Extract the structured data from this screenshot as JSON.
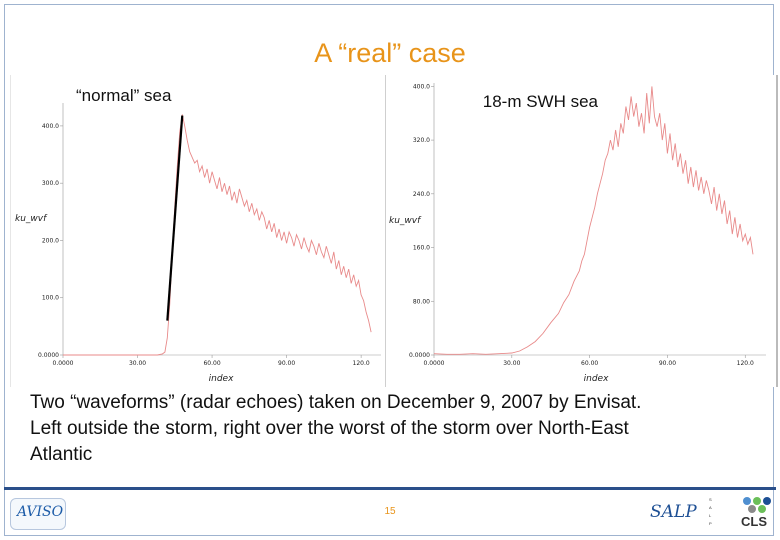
{
  "slide": {
    "title": "A “real” case",
    "caption_lines": [
      "Two “waveforms” (radar echoes) taken on December 9, 2007 by Envisat.",
      "Left outside the storm, right over the worst of the storm over North-East",
      "Atlantic"
    ],
    "page_number": "15",
    "colors": {
      "title": "#e8941a",
      "waveform": "#e88a8a",
      "leading_edge": "#000000",
      "footer_rule": "#2a4f8a"
    }
  },
  "logos": {
    "aviso": "AVISO",
    "salp": "SALP",
    "salp_sub": [
      "S",
      "A",
      "L",
      "P"
    ],
    "cls": "CLS"
  },
  "chart_data": [
    {
      "type": "line",
      "title": "“normal” sea",
      "xlabel": "index",
      "ylabel": "ku_wvf",
      "xlim": [
        0,
        128
      ],
      "ylim": [
        0,
        440
      ],
      "x_ticks": [
        "0.0000",
        "30.00",
        "60.00",
        "90.00",
        "120.0"
      ],
      "x_tick_values": [
        0,
        30,
        60,
        90,
        120
      ],
      "y_ticks": [
        "0.0000",
        "100.0",
        "200.0",
        "300.0",
        "400.0"
      ],
      "y_tick_values": [
        0,
        100,
        200,
        300,
        400
      ],
      "series": [
        {
          "points": [
            [
              0,
              0
            ],
            [
              10,
              0
            ],
            [
              20,
              0
            ],
            [
              30,
              0
            ],
            [
              38,
              0
            ],
            [
              40,
              2
            ],
            [
              41,
              5
            ],
            [
              42,
              30
            ],
            [
              43,
              90
            ],
            [
              44,
              180
            ],
            [
              45,
              260
            ],
            [
              46,
              330
            ],
            [
              47,
              390
            ],
            [
              48,
              420
            ],
            [
              49,
              400
            ],
            [
              50,
              375
            ],
            [
              51,
              355
            ],
            [
              52,
              345
            ],
            [
              53,
              335
            ],
            [
              54,
              340
            ],
            [
              55,
              320
            ],
            [
              56,
              330
            ],
            [
              57,
              310
            ],
            [
              58,
              325
            ],
            [
              59,
              300
            ],
            [
              60,
              320
            ],
            [
              61,
              305
            ],
            [
              62,
              290
            ],
            [
              63,
              310
            ],
            [
              64,
              285
            ],
            [
              65,
              300
            ],
            [
              66,
              280
            ],
            [
              67,
              295
            ],
            [
              68,
              270
            ],
            [
              69,
              285
            ],
            [
              70,
              265
            ],
            [
              71,
              290
            ],
            [
              72,
              275
            ],
            [
              73,
              260
            ],
            [
              74,
              270
            ],
            [
              75,
              250
            ],
            [
              76,
              265
            ],
            [
              77,
              245
            ],
            [
              78,
              255
            ],
            [
              79,
              235
            ],
            [
              80,
              250
            ],
            [
              81,
              240
            ],
            [
              82,
              220
            ],
            [
              83,
              235
            ],
            [
              84,
              215
            ],
            [
              85,
              230
            ],
            [
              86,
              205
            ],
            [
              87,
              220
            ],
            [
              88,
              200
            ],
            [
              89,
              215
            ],
            [
              90,
              195
            ],
            [
              91,
              215
            ],
            [
              92,
              205
            ],
            [
              93,
              190
            ],
            [
              94,
              210
            ],
            [
              95,
              200
            ],
            [
              96,
              185
            ],
            [
              97,
              205
            ],
            [
              98,
              190
            ],
            [
              99,
              180
            ],
            [
              100,
              200
            ],
            [
              101,
              190
            ],
            [
              102,
              175
            ],
            [
              103,
              195
            ],
            [
              104,
              180
            ],
            [
              105,
              170
            ],
            [
              106,
              190
            ],
            [
              107,
              175
            ],
            [
              108,
              160
            ],
            [
              109,
              180
            ],
            [
              110,
              150
            ],
            [
              111,
              165
            ],
            [
              112,
              140
            ],
            [
              113,
              155
            ],
            [
              114,
              135
            ],
            [
              115,
              150
            ],
            [
              116,
              125
            ],
            [
              117,
              140
            ],
            [
              118,
              120
            ],
            [
              119,
              130
            ],
            [
              120,
              105
            ],
            [
              121,
              95
            ],
            [
              122,
              75
            ],
            [
              123,
              60
            ],
            [
              124,
              40
            ]
          ]
        }
      ],
      "annotation_line": {
        "from": [
          48,
          418
        ],
        "to": [
          42,
          60
        ]
      }
    },
    {
      "type": "line",
      "title": "18-m SWH sea",
      "xlabel": "index",
      "ylabel": "ku_wvf",
      "xlim": [
        0,
        128
      ],
      "ylim": [
        0,
        405
      ],
      "x_ticks": [
        "0.0000",
        "30.00",
        "60.00",
        "90.00",
        "120.0"
      ],
      "x_tick_values": [
        0,
        30,
        60,
        90,
        120
      ],
      "y_ticks": [
        "0.0000",
        "80.00",
        "160.0",
        "240.0",
        "320.0",
        "400.0"
      ],
      "y_tick_values": [
        0,
        80,
        160,
        240,
        320,
        400
      ],
      "series": [
        {
          "points": [
            [
              0,
              2
            ],
            [
              5,
              1
            ],
            [
              10,
              1
            ],
            [
              15,
              2
            ],
            [
              20,
              1
            ],
            [
              25,
              2
            ],
            [
              30,
              3
            ],
            [
              33,
              6
            ],
            [
              36,
              12
            ],
            [
              39,
              20
            ],
            [
              42,
              32
            ],
            [
              45,
              48
            ],
            [
              48,
              62
            ],
            [
              50,
              78
            ],
            [
              52,
              90
            ],
            [
              54,
              110
            ],
            [
              56,
              125
            ],
            [
              57,
              140
            ],
            [
              58,
              150
            ],
            [
              59,
              170
            ],
            [
              60,
              190
            ],
            [
              61,
              205
            ],
            [
              62,
              220
            ],
            [
              63,
              240
            ],
            [
              64,
              255
            ],
            [
              65,
              270
            ],
            [
              66,
              290
            ],
            [
              67,
              300
            ],
            [
              68,
              320
            ],
            [
              69,
              305
            ],
            [
              70,
              335
            ],
            [
              71,
              310
            ],
            [
              72,
              345
            ],
            [
              73,
              330
            ],
            [
              74,
              370
            ],
            [
              75,
              350
            ],
            [
              76,
              385
            ],
            [
              77,
              355
            ],
            [
              78,
              375
            ],
            [
              79,
              340
            ],
            [
              80,
              360
            ],
            [
              81,
              330
            ],
            [
              82,
              390
            ],
            [
              83,
              345
            ],
            [
              84,
              400
            ],
            [
              85,
              355
            ],
            [
              86,
              340
            ],
            [
              87,
              360
            ],
            [
              88,
              320
            ],
            [
              89,
              345
            ],
            [
              90,
              300
            ],
            [
              91,
              330
            ],
            [
              92,
              290
            ],
            [
              93,
              315
            ],
            [
              94,
              280
            ],
            [
              95,
              300
            ],
            [
              96,
              270
            ],
            [
              97,
              290
            ],
            [
              98,
              255
            ],
            [
              99,
              280
            ],
            [
              100,
              250
            ],
            [
              101,
              275
            ],
            [
              102,
              245
            ],
            [
              103,
              265
            ],
            [
              104,
              240
            ],
            [
              105,
              260
            ],
            [
              106,
              245
            ],
            [
              107,
              225
            ],
            [
              108,
              250
            ],
            [
              109,
              215
            ],
            [
              110,
              240
            ],
            [
              111,
              210
            ],
            [
              112,
              230
            ],
            [
              113,
              195
            ],
            [
              114,
              215
            ],
            [
              115,
              180
            ],
            [
              116,
              205
            ],
            [
              117,
              175
            ],
            [
              118,
              195
            ],
            [
              119,
              170
            ],
            [
              120,
              180
            ],
            [
              121,
              165
            ],
            [
              122,
              175
            ],
            [
              123,
              150
            ]
          ]
        }
      ]
    }
  ]
}
